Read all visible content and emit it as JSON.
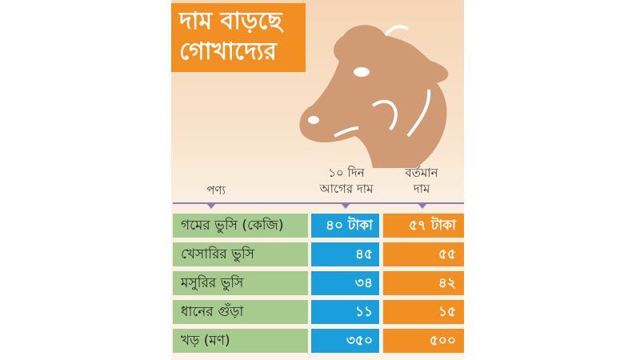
{
  "title": {
    "line1": "দাম বাড়ছে",
    "line2": "গোখাদ্যের"
  },
  "headers": {
    "product": "পণ্য",
    "old_price_line1": "১০ দিন",
    "old_price_line2": "আগের দাম",
    "new_price_line1": "বর্তমান",
    "new_price_line2": "দাম"
  },
  "rows": [
    {
      "name": "গমের ভুসি (কেজি)",
      "old": "৪০ টাকা",
      "new": "৫৭ টাকা"
    },
    {
      "name": "খেসারির ভুসি",
      "old": "৪৫",
      "new": "৫৫"
    },
    {
      "name": "মসুরির ভুসি",
      "old": "৩৪",
      "new": "৪২"
    },
    {
      "name": "ধানের গুঁড়া",
      "old": "১১",
      "new": "১৫"
    },
    {
      "name": "খড় (মণ)",
      "old": "৩৫০",
      "new": "৫০০"
    }
  ],
  "colors": {
    "title_bg": "#f18f22",
    "name_cell": "#a7cb8f",
    "old_price_cell": "#1b9fdc",
    "new_price_cell": "#f18f22",
    "cow": "#cf9a74"
  },
  "icons": {
    "illustration": "cow-head-icon"
  }
}
